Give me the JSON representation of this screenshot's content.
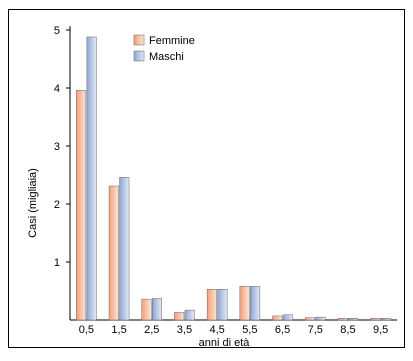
{
  "chart_data": {
    "type": "bar",
    "title": "",
    "xlabel": "anni di età",
    "ylabel": "Casi (migliaia)",
    "categories": [
      "0,5",
      "1,5",
      "2,5",
      "3,5",
      "4,5",
      "5,5",
      "6,5",
      "7,5",
      "8,5",
      "9,5"
    ],
    "ylim": [
      0,
      5
    ],
    "yticks": [
      "1",
      "2",
      "3",
      "4",
      "5"
    ],
    "legend_position": "top-center",
    "series": [
      {
        "name": "Femmine",
        "color": "#f4a07a",
        "values": [
          3.96,
          2.31,
          0.36,
          0.13,
          0.53,
          0.58,
          0.07,
          0.04,
          0.03,
          0.03
        ]
      },
      {
        "name": "Maschi",
        "color": "#8fa6d3",
        "values": [
          4.88,
          2.46,
          0.37,
          0.17,
          0.53,
          0.58,
          0.09,
          0.05,
          0.03,
          0.03
        ]
      }
    ]
  }
}
